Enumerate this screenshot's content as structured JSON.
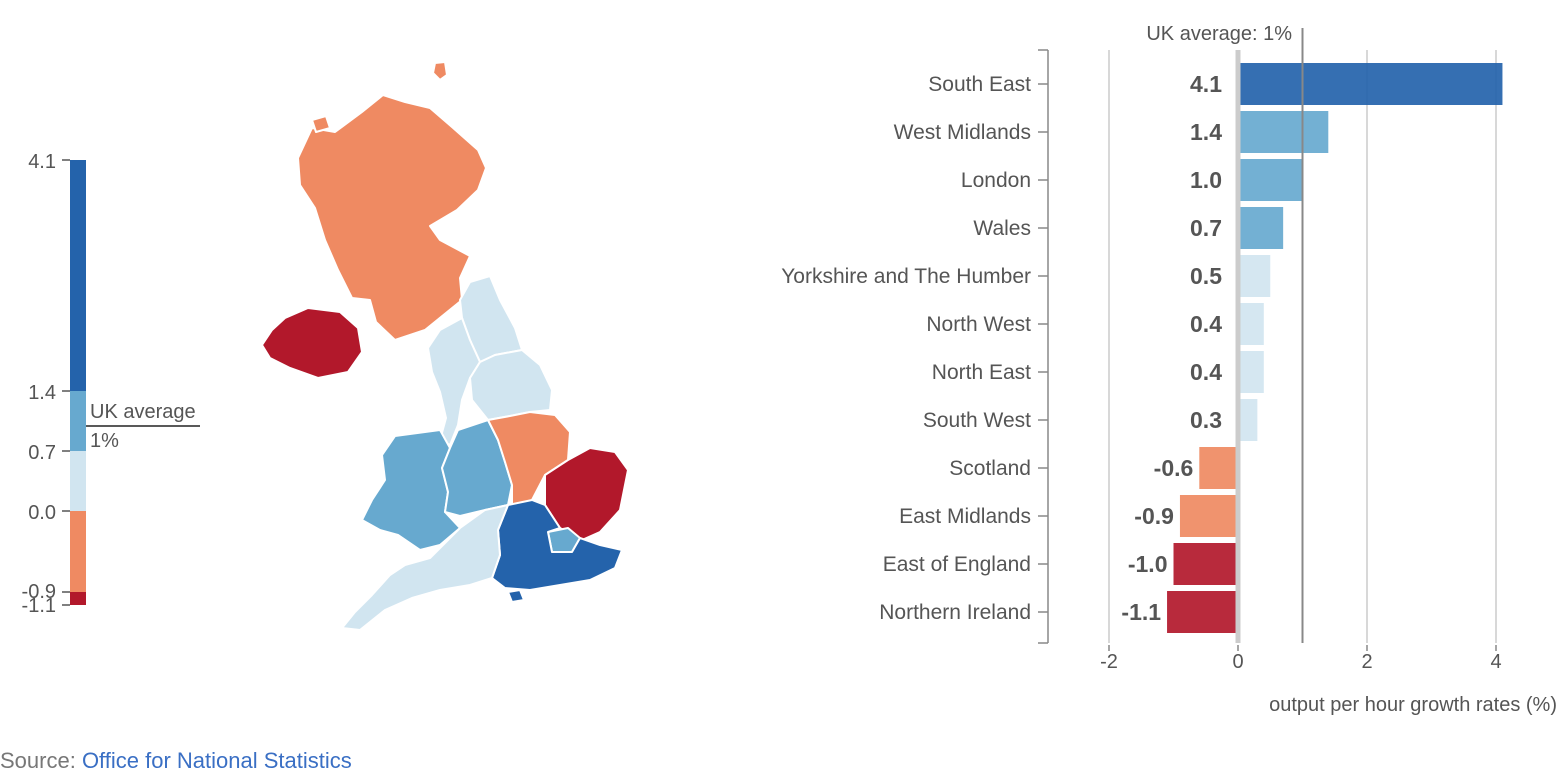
{
  "colors": {
    "dark_blue": "#2463ab",
    "mid_blue": "#67a9cf",
    "light_blue": "#d1e5f0",
    "orange": "#ef8a62",
    "red": "#b2182b",
    "axis": "#888888",
    "text": "#555555",
    "source_link": "#3a6fc4"
  },
  "legend": {
    "ticks": [
      "4.1",
      "1.4",
      "0.7",
      "0.0",
      "-0.9",
      "-1.1"
    ],
    "average_label_line1": "UK average",
    "average_label_line2": "1%"
  },
  "map": {
    "regions": [
      {
        "name": "Scotland",
        "color": "#ef8a62"
      },
      {
        "name": "Northern Ireland",
        "color": "#b2182b"
      },
      {
        "name": "North East",
        "color": "#d1e5f0"
      },
      {
        "name": "North West",
        "color": "#d1e5f0"
      },
      {
        "name": "Yorkshire and The Humber",
        "color": "#d1e5f0"
      },
      {
        "name": "Wales",
        "color": "#67a9cf"
      },
      {
        "name": "West Midlands",
        "color": "#67a9cf"
      },
      {
        "name": "East Midlands",
        "color": "#ef8a62"
      },
      {
        "name": "East of England",
        "color": "#b2182b"
      },
      {
        "name": "London",
        "color": "#67a9cf"
      },
      {
        "name": "South East",
        "color": "#2463ab"
      },
      {
        "name": "South West",
        "color": "#d1e5f0"
      }
    ]
  },
  "chart_data": {
    "type": "bar",
    "orientation": "horizontal",
    "categories": [
      "South East",
      "West Midlands",
      "London",
      "Wales",
      "Yorkshire and The Humber",
      "North West",
      "North East",
      "South West",
      "Scotland",
      "East Midlands",
      "East of England",
      "Northern Ireland"
    ],
    "values": [
      4.1,
      1.4,
      1.0,
      0.7,
      0.5,
      0.4,
      0.4,
      0.3,
      -0.6,
      -0.9,
      -1.0,
      -1.1
    ],
    "value_labels": [
      "4.1",
      "1.4",
      "1.0",
      "0.7",
      "0.5",
      "0.4",
      "0.4",
      "0.3",
      "-0.6",
      "-0.9",
      "-1.0",
      "-1.1"
    ],
    "bar_colors": [
      "#2463ab",
      "#67a9cf",
      "#67a9cf",
      "#67a9cf",
      "#d1e5f0",
      "#d1e5f0",
      "#d1e5f0",
      "#d1e5f0",
      "#ef8a62",
      "#ef8a62",
      "#b2182b",
      "#b2182b"
    ],
    "xlim": [
      -2,
      4.2
    ],
    "xticks": [
      -2,
      0,
      2,
      4
    ],
    "xtick_labels": [
      "-2",
      "0",
      "2",
      "4"
    ],
    "reference_line": {
      "value": 1,
      "label": "UK average: 1%"
    },
    "xlabel": "output per hour growth rates (%)",
    "ylabel": "",
    "title": "",
    "grid": true
  },
  "source": {
    "prefix": "Source: ",
    "link_text": "Office for National Statistics"
  }
}
